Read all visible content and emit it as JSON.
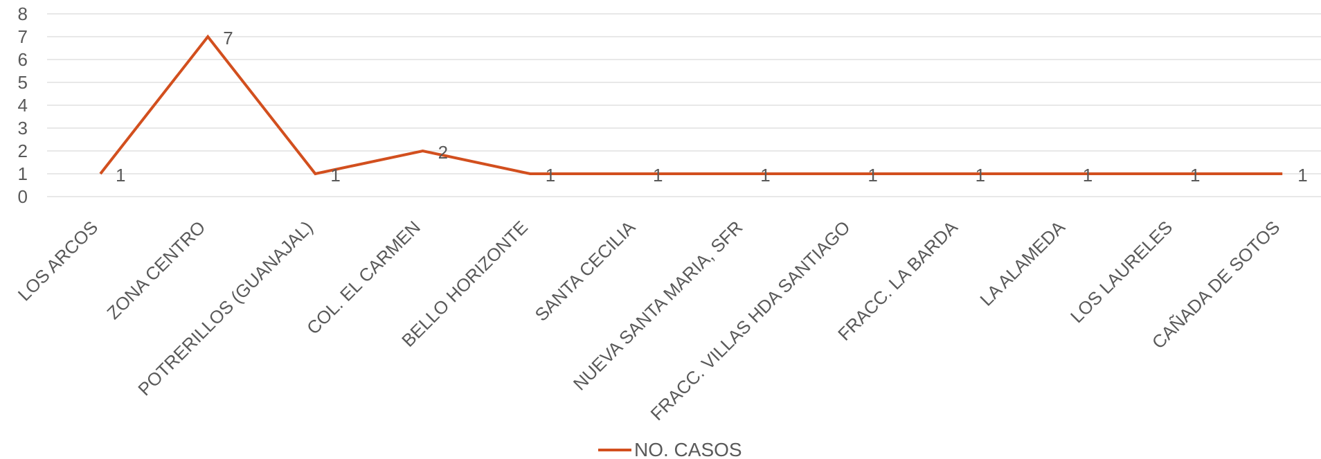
{
  "chart_data": {
    "type": "line",
    "categories": [
      "LOS ARCOS",
      "ZONA CENTRO",
      "POTRERILLOS (GUANAJAL)",
      "COL. EL CARMEN",
      "BELLO HORIZONTE",
      "SANTA CECILIA",
      "NUEVA SANTA MARIA, SFR",
      "FRACC. VILLAS HDA SANTIAGO",
      "FRACC. LA BARDA",
      "LA ALAMEDA",
      "LOS LAURELES",
      "CAÑADA DE SOTOS"
    ],
    "series": [
      {
        "name": "NO. CASOS",
        "values": [
          1,
          7,
          1,
          2,
          1,
          1,
          1,
          1,
          1,
          1,
          1,
          1
        ],
        "color": "#D24F1E"
      }
    ],
    "yticks": [
      "0",
      "1",
      "2",
      "3",
      "4",
      "5",
      "6",
      "7",
      "8"
    ],
    "ylim": [
      0,
      8
    ],
    "grid": true,
    "legend": "bottom",
    "data_labels": true,
    "title": "",
    "xlabel": "",
    "ylabel": ""
  }
}
